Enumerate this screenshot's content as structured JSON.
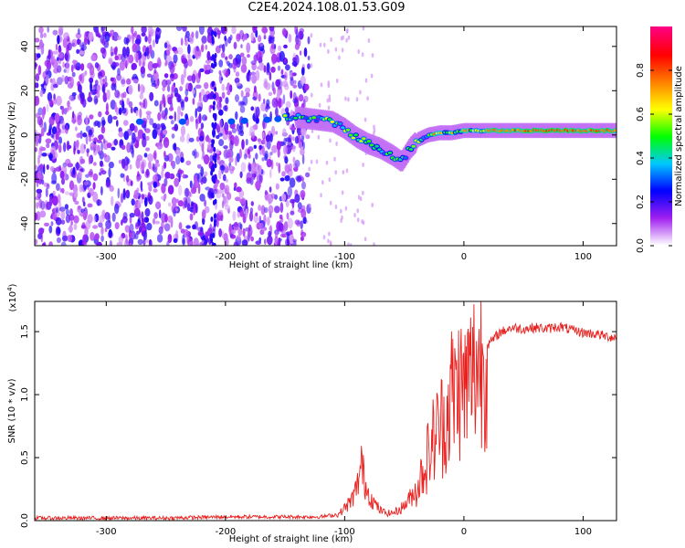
{
  "title": "C2E4.2024.108.01.53.G09",
  "colors": {
    "signal": "#e8201e",
    "plot_bg": "#ffffff",
    "axis": "#000000"
  },
  "chart_data": [
    {
      "type": "heatmap",
      "xlabel": "Height of straight line (km)",
      "ylabel": "Frequency (Hz)",
      "xlim": [
        -360,
        128
      ],
      "ylim": [
        -50,
        49
      ],
      "x_ticks": [
        -300,
        -200,
        -100,
        0,
        100
      ],
      "y_ticks": [
        -40,
        -20,
        0,
        20,
        40
      ],
      "colorbar": {
        "label": "Normalized spectral amplitude",
        "range": [
          0.0,
          1.0
        ],
        "ticks": [
          "0.0",
          "0.2",
          "0.4",
          "0.6",
          "0.8"
        ],
        "colormap": [
          "#ffffff",
          "#a020f0",
          "#0000ff",
          "#00c8ff",
          "#00ff00",
          "#ffff00",
          "#ff8000",
          "#ff0000",
          "#ff0080"
        ]
      },
      "ridge": {
        "x": [
          -275,
          -240,
          -200,
          -160,
          -140,
          -125,
          -110,
          -100,
          -90,
          -80,
          -70,
          -60,
          -52,
          -45,
          -38,
          -30,
          -20,
          -10,
          0,
          20,
          50,
          80,
          100,
          128
        ],
        "frequency": [
          6,
          6,
          6,
          7,
          8,
          7,
          6,
          3,
          -1,
          -4,
          -6,
          -9,
          -12,
          -6,
          -2,
          0,
          1,
          1,
          2,
          2,
          2,
          2,
          2,
          2
        ]
      }
    },
    {
      "type": "line",
      "xlabel": "Height of straight line (km)",
      "ylabel": "SNR (10 * v/v)",
      "y_multiplier": "(x10",
      "y_multiplier_exp": "4",
      "y_multiplier_close": ")",
      "xlim": [
        -360,
        128
      ],
      "ylim": [
        0,
        1.74
      ],
      "x_ticks": [
        -300,
        -200,
        -100,
        0,
        100
      ],
      "y_ticks": [
        "0.0",
        "0.5",
        "1.0",
        "1.5"
      ],
      "series": [
        {
          "x": [
            -360,
            -300,
            -250,
            -200,
            -180,
            -150,
            -120,
            -105,
            -95,
            -90,
            -86,
            -83,
            -80,
            -76,
            -70,
            -65,
            -60,
            -55,
            -50,
            -45,
            -40,
            -35,
            -30,
            -25,
            -20,
            -15,
            -12,
            -10,
            -8,
            -5,
            0,
            5,
            10,
            15,
            20,
            25,
            30,
            35,
            40,
            50,
            60,
            70,
            80,
            90,
            100,
            110,
            120,
            128
          ],
          "y": [
            0.02,
            0.02,
            0.02,
            0.03,
            0.03,
            0.03,
            0.03,
            0.05,
            0.15,
            0.25,
            0.45,
            0.3,
            0.22,
            0.15,
            0.08,
            0.06,
            0.06,
            0.08,
            0.12,
            0.18,
            0.25,
            0.4,
            0.55,
            0.7,
            0.8,
            0.85,
            1.0,
            1.1,
            1.05,
            1.15,
            1.1,
            1.2,
            1.3,
            1.35,
            1.4,
            1.45,
            1.5,
            1.52,
            1.54,
            1.53,
            1.54,
            1.53,
            1.55,
            1.52,
            1.5,
            1.49,
            1.47,
            1.46
          ]
        }
      ]
    }
  ]
}
